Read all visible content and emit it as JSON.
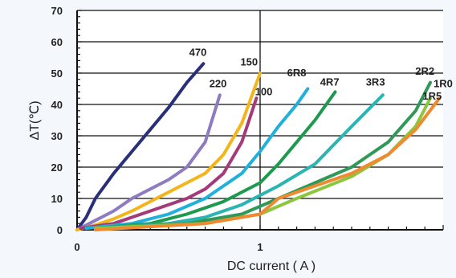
{
  "chart_data": {
    "type": "line",
    "title": "",
    "xlabel": "DC current ( A )",
    "ylabel": "ΔT(℃)",
    "xlim": [
      0,
      2.0
    ],
    "ylim": [
      0,
      70
    ],
    "x_ticks": [
      {
        "value": 0,
        "label": "0"
      },
      {
        "value": 1,
        "label": "1"
      }
    ],
    "y_ticks": [
      {
        "value": 0,
        "label": "0"
      },
      {
        "value": 10,
        "label": "10"
      },
      {
        "value": 20,
        "label": "20"
      },
      {
        "value": 30,
        "label": "30"
      },
      {
        "value": 40,
        "label": "40"
      },
      {
        "value": 50,
        "label": "50"
      },
      {
        "value": 60,
        "label": "60"
      },
      {
        "value": 70,
        "label": "70"
      }
    ],
    "grid": true,
    "legend": "none",
    "series": [
      {
        "name": "470",
        "color": "#2a2f7a",
        "label_at": [
          0.66,
          55.5
        ],
        "points": [
          [
            0,
            0
          ],
          [
            0.05,
            4
          ],
          [
            0.1,
            10
          ],
          [
            0.15,
            14
          ],
          [
            0.2,
            18
          ],
          [
            0.3,
            25
          ],
          [
            0.4,
            32
          ],
          [
            0.5,
            39
          ],
          [
            0.6,
            47
          ],
          [
            0.69,
            53
          ]
        ]
      },
      {
        "name": "220",
        "color": "#8f7bc0",
        "label_at": [
          0.77,
          45.5
        ],
        "points": [
          [
            0,
            0
          ],
          [
            0.1,
            3
          ],
          [
            0.2,
            6
          ],
          [
            0.3,
            10
          ],
          [
            0.4,
            13
          ],
          [
            0.5,
            16
          ],
          [
            0.6,
            20
          ],
          [
            0.7,
            28
          ],
          [
            0.78,
            43
          ]
        ]
      },
      {
        "name": "150",
        "color": "#f2b51b",
        "label_at": [
          0.94,
          52.5
        ],
        "points": [
          [
            0,
            0
          ],
          [
            0.1,
            1.5
          ],
          [
            0.2,
            3.5
          ],
          [
            0.3,
            6
          ],
          [
            0.4,
            9
          ],
          [
            0.5,
            12
          ],
          [
            0.6,
            15
          ],
          [
            0.7,
            18
          ],
          [
            0.8,
            24
          ],
          [
            0.9,
            34
          ],
          [
            1.0,
            50
          ]
        ]
      },
      {
        "name": "100",
        "color": "#a53a7a",
        "label_at": [
          1.02,
          43
        ],
        "points": [
          [
            0.02,
            0.5
          ],
          [
            0.2,
            2
          ],
          [
            0.4,
            6
          ],
          [
            0.6,
            10
          ],
          [
            0.7,
            13
          ],
          [
            0.8,
            18
          ],
          [
            0.9,
            28
          ],
          [
            0.98,
            42
          ]
        ]
      },
      {
        "name": "6R8",
        "color": "#1fb0dc",
        "label_at": [
          1.2,
          49
        ],
        "points": [
          [
            0.05,
            0.5
          ],
          [
            0.3,
            2
          ],
          [
            0.5,
            5
          ],
          [
            0.7,
            10
          ],
          [
            0.9,
            18
          ],
          [
            1.0,
            25
          ],
          [
            1.1,
            33
          ],
          [
            1.2,
            40
          ],
          [
            1.26,
            45
          ]
        ]
      },
      {
        "name": "4R7",
        "color": "#1e9a4f",
        "label_at": [
          1.38,
          46
        ],
        "points": [
          [
            0.1,
            0.5
          ],
          [
            0.4,
            2
          ],
          [
            0.6,
            5
          ],
          [
            0.8,
            9
          ],
          [
            1.0,
            15
          ],
          [
            1.1,
            21
          ],
          [
            1.2,
            28
          ],
          [
            1.3,
            35
          ],
          [
            1.41,
            44
          ]
        ]
      },
      {
        "name": "3R3",
        "color": "#2ab5b2",
        "label_at": [
          1.63,
          46
        ],
        "points": [
          [
            0.1,
            0.5
          ],
          [
            0.5,
            2
          ],
          [
            0.7,
            4
          ],
          [
            0.9,
            8
          ],
          [
            1.1,
            14
          ],
          [
            1.3,
            21
          ],
          [
            1.5,
            33
          ],
          [
            1.67,
            43
          ]
        ]
      },
      {
        "name": "2R2",
        "color": "#2f9a58",
        "label_at": [
          1.9,
          49.5
        ],
        "points": [
          [
            0.1,
            0.5
          ],
          [
            0.6,
            2
          ],
          [
            0.9,
            5
          ],
          [
            1.1,
            10
          ],
          [
            1.3,
            15
          ],
          [
            1.5,
            20
          ],
          [
            1.7,
            28
          ],
          [
            1.85,
            38
          ],
          [
            1.93,
            47
          ]
        ]
      },
      {
        "name": "1R5",
        "color": "#8cc63f",
        "label_at": [
          1.94,
          41.5
        ],
        "points": [
          [
            0.1,
            0.5
          ],
          [
            0.7,
            2
          ],
          [
            1.0,
            5
          ],
          [
            1.2,
            10
          ],
          [
            1.5,
            17
          ],
          [
            1.7,
            24
          ],
          [
            1.85,
            33
          ],
          [
            1.93,
            42
          ]
        ]
      },
      {
        "name": "1R0",
        "color": "#f08a30",
        "label_at": [
          2.0,
          45.5
        ],
        "points": [
          [
            0.1,
            0
          ],
          [
            0.7,
            2
          ],
          [
            1.0,
            5
          ],
          [
            1.1,
            10
          ],
          [
            1.3,
            14
          ],
          [
            1.5,
            18
          ],
          [
            1.7,
            24
          ],
          [
            1.85,
            32
          ],
          [
            1.98,
            42
          ]
        ]
      }
    ]
  }
}
